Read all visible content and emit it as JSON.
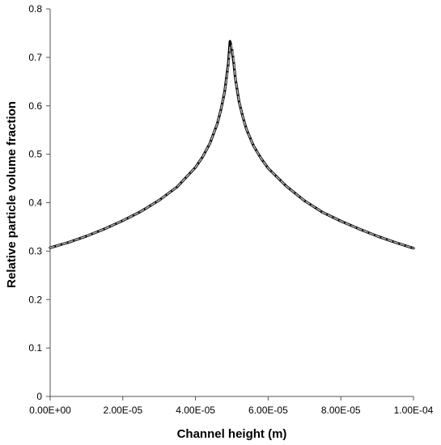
{
  "chart_data": {
    "type": "line",
    "title": "",
    "xlabel": "Channel height (m)",
    "ylabel": "Relative particle volume fraction",
    "xlim": [
      0,
      0.0001
    ],
    "ylim": [
      0,
      0.8
    ],
    "x_ticks": [
      0,
      2e-05,
      4e-05,
      6e-05,
      8e-05,
      0.0001
    ],
    "x_tick_labels": [
      "0.00E+00",
      "2.00E-05",
      "4.00E-05",
      "6.00E-05",
      "8.00E-05",
      "1.00E-04"
    ],
    "y_ticks": [
      0,
      0.1,
      0.2,
      0.3,
      0.4,
      0.5,
      0.6,
      0.7,
      0.8
    ],
    "y_tick_labels": [
      "0",
      "0.1",
      "0.2",
      "0.3",
      "0.4",
      "0.5",
      "0.6",
      "0.7",
      "0.8"
    ],
    "grid": false,
    "legend": "none",
    "series": [
      {
        "style": "solid",
        "color": "#000000",
        "x": [
          0,
          5e-06,
          1e-05,
          1.5e-05,
          2e-05,
          2.5e-05,
          3e-05,
          3.5e-05,
          4e-05,
          4.2e-05,
          4.4e-05,
          4.6e-05,
          4.7e-05,
          4.8e-05,
          4.9e-05,
          4.95e-05,
          5e-05,
          5.05e-05,
          5.1e-05,
          5.2e-05,
          5.3e-05,
          5.4e-05,
          5.6e-05,
          5.8e-05,
          6e-05,
          6.5e-05,
          7e-05,
          7.5e-05,
          8e-05,
          8.5e-05,
          9e-05,
          9.5e-05,
          0.0001
        ],
        "y": [
          0.307,
          0.318,
          0.331,
          0.346,
          0.363,
          0.382,
          0.405,
          0.433,
          0.473,
          0.495,
          0.523,
          0.563,
          0.592,
          0.628,
          0.685,
          0.733,
          0.718,
          0.69,
          0.655,
          0.608,
          0.578,
          0.552,
          0.517,
          0.492,
          0.471,
          0.434,
          0.404,
          0.38,
          0.362,
          0.346,
          0.331,
          0.318,
          0.306
        ]
      },
      {
        "style": "dashed",
        "color": "#b0b0b0",
        "x": [
          0,
          5e-06,
          1e-05,
          1.5e-05,
          2e-05,
          2.5e-05,
          3e-05,
          3.5e-05,
          4e-05,
          4.2e-05,
          4.4e-05,
          4.6e-05,
          4.7e-05,
          4.8e-05,
          4.9e-05,
          4.95e-05,
          5e-05,
          5.05e-05,
          5.1e-05,
          5.2e-05,
          5.3e-05,
          5.4e-05,
          5.6e-05,
          5.8e-05,
          6e-05,
          6.5e-05,
          7e-05,
          7.5e-05,
          8e-05,
          8.5e-05,
          9e-05,
          9.5e-05,
          0.0001
        ],
        "y": [
          0.307,
          0.318,
          0.331,
          0.346,
          0.363,
          0.382,
          0.405,
          0.433,
          0.473,
          0.495,
          0.523,
          0.563,
          0.592,
          0.628,
          0.68,
          0.722,
          0.725,
          0.695,
          0.655,
          0.608,
          0.578,
          0.552,
          0.517,
          0.492,
          0.471,
          0.434,
          0.404,
          0.38,
          0.362,
          0.346,
          0.331,
          0.318,
          0.306
        ]
      }
    ]
  }
}
